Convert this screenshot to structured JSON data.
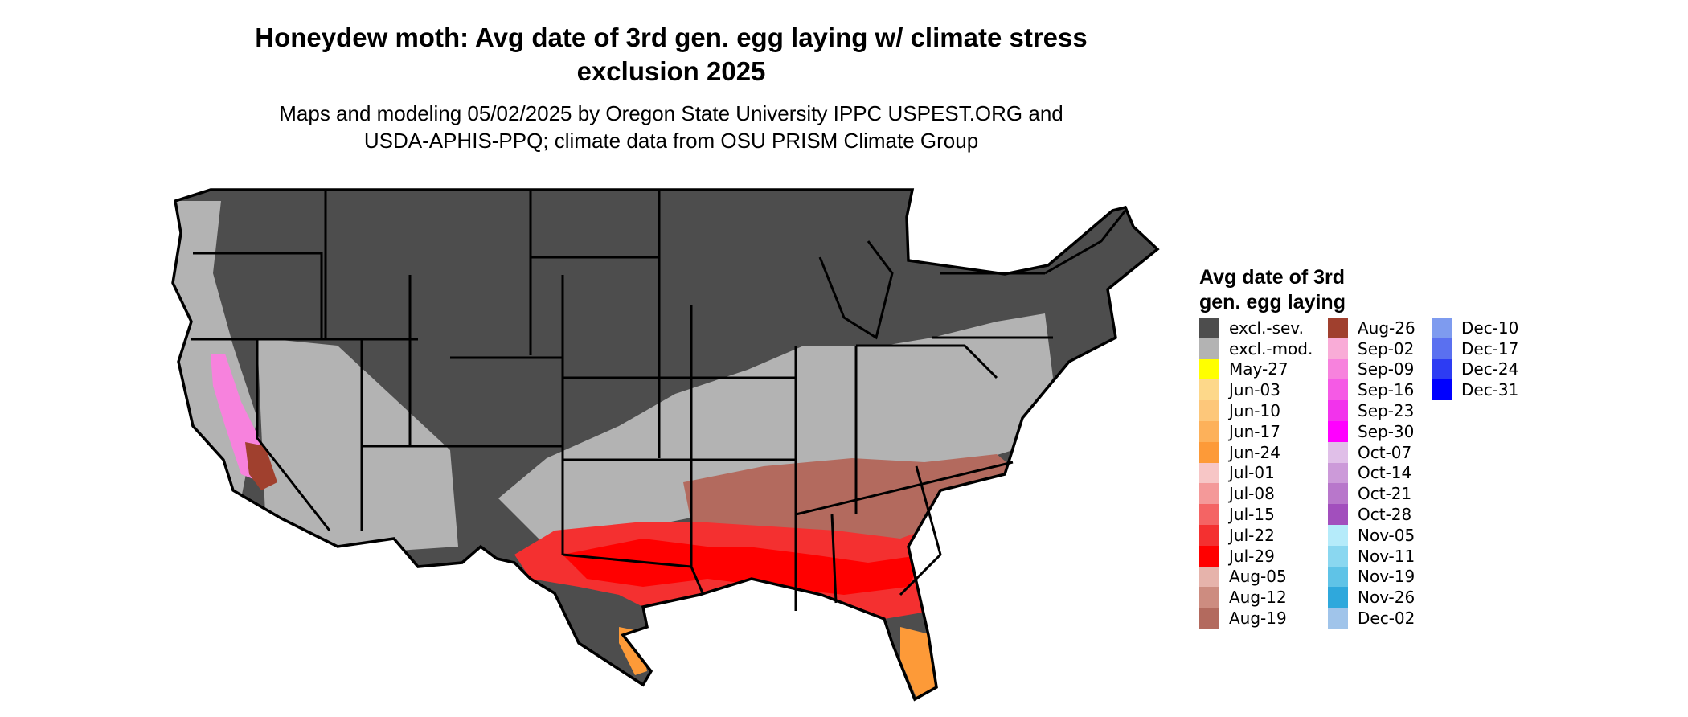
{
  "title_line1": "Honeydew moth: Avg date of 3rd gen. egg laying w/ climate stress",
  "title_line2": "exclusion 2025",
  "subtitle_line1": "Maps and modeling 05/02/2025 by Oregon State University IPPC USPEST.ORG and",
  "subtitle_line2": "USDA-APHIS-PPQ; climate data from OSU PRISM Climate Group",
  "legend": {
    "title_line1": "Avg date of 3rd",
    "title_line2": "gen. egg laying",
    "items": [
      {
        "label": "excl.-sev.",
        "color": "#4d4d4d"
      },
      {
        "label": "excl.-mod.",
        "color": "#b3b3b3"
      },
      {
        "label": "May-27",
        "color": "#ffff00"
      },
      {
        "label": "Jun-03",
        "color": "#fdd88a"
      },
      {
        "label": "Jun-10",
        "color": "#fdc77a"
      },
      {
        "label": "Jun-17",
        "color": "#fdb15a"
      },
      {
        "label": "Jun-24",
        "color": "#fd9a38"
      },
      {
        "label": "Jul-01",
        "color": "#f7c6c6"
      },
      {
        "label": "Jul-08",
        "color": "#f49999"
      },
      {
        "label": "Jul-15",
        "color": "#f46464"
      },
      {
        "label": "Jul-22",
        "color": "#f43030"
      },
      {
        "label": "Jul-29",
        "color": "#ff0000"
      },
      {
        "label": "Aug-05",
        "color": "#e6b3ab"
      },
      {
        "label": "Aug-12",
        "color": "#cd8c80"
      },
      {
        "label": "Aug-19",
        "color": "#b36a5e"
      },
      {
        "label": "Aug-26",
        "color": "#a0402e"
      },
      {
        "label": "Sep-02",
        "color": "#f9acd7"
      },
      {
        "label": "Sep-09",
        "color": "#f782dd"
      },
      {
        "label": "Sep-16",
        "color": "#f55ae5"
      },
      {
        "label": "Sep-23",
        "color": "#f233ec"
      },
      {
        "label": "Sep-30",
        "color": "#ff00ff"
      },
      {
        "label": "Oct-07",
        "color": "#e0bfe8"
      },
      {
        "label": "Oct-14",
        "color": "#cc9ad9"
      },
      {
        "label": "Oct-21",
        "color": "#b877cb"
      },
      {
        "label": "Oct-28",
        "color": "#a24fbd"
      },
      {
        "label": "Nov-05",
        "color": "#b5ebfa"
      },
      {
        "label": "Nov-11",
        "color": "#8ad7f0"
      },
      {
        "label": "Nov-19",
        "color": "#5fc3e7"
      },
      {
        "label": "Nov-26",
        "color": "#2fa8dc"
      },
      {
        "label": "Dec-02",
        "color": "#a0c4ea"
      },
      {
        "label": "Dec-10",
        "color": "#7e9bef"
      },
      {
        "label": "Dec-17",
        "color": "#5a70f0"
      },
      {
        "label": "Dec-24",
        "color": "#2d3cf3"
      },
      {
        "label": "Dec-31",
        "color": "#0000ff"
      }
    ]
  }
}
